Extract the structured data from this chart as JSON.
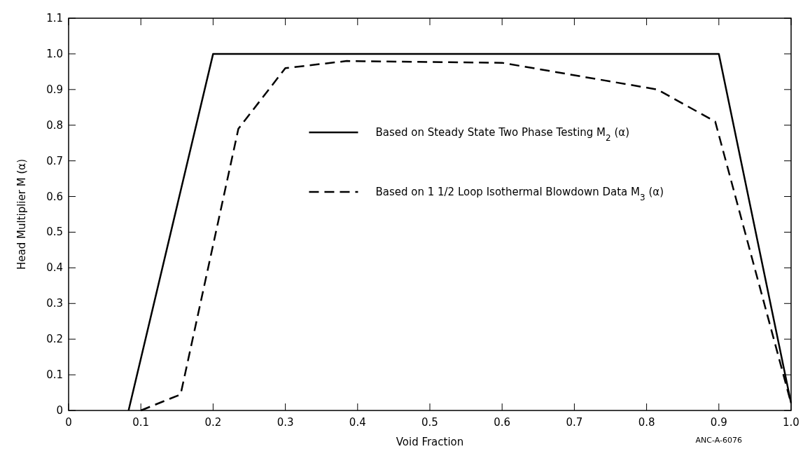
{
  "chart_data": {
    "type": "line",
    "xlabel": "Void Fraction",
    "ylabel": "Head Multiplier M (α)",
    "xlim": [
      0,
      1
    ],
    "ylim": [
      0,
      1.1
    ],
    "xticks": [
      0,
      0.1,
      0.2,
      0.3,
      0.4,
      0.5,
      0.6,
      0.7,
      0.8,
      0.9,
      {
        "value": 1,
        "label": "1.0"
      }
    ],
    "yticks": [
      0,
      0.1,
      0.2,
      0.3,
      0.4,
      0.5,
      0.6,
      0.7,
      0.8,
      0.9,
      {
        "value": 1,
        "label": "1.0"
      },
      1.1
    ],
    "series": [
      {
        "name": "Based on Steady State Two Phase Testing M$_{2}$ (α)",
        "color": "#000000",
        "line_style": "solid",
        "x": [
          0.083,
          0.2,
          0.9,
          1.0
        ],
        "values": [
          0,
          1.0,
          1.0,
          0.02
        ]
      },
      {
        "name": "Based on 1 1/2 Loop Isothermal Blowdown Data M$_{3}$ (α)",
        "color": "#000000",
        "line_style": "dashed",
        "x": [
          0.1,
          0.155,
          0.235,
          0.3,
          0.385,
          0.6,
          0.815,
          0.895,
          1.0
        ],
        "values": [
          0,
          0.045,
          0.79,
          0.96,
          0.98,
          0.975,
          0.9,
          0.81,
          0.02
        ]
      }
    ],
    "legend": "top",
    "grid": false,
    "annotations": [
      "ANC-A-6076"
    ]
  }
}
